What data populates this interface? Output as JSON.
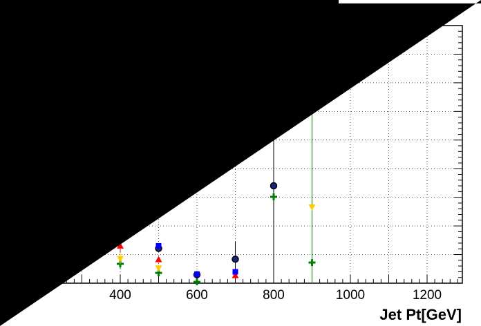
{
  "chart_data": {
    "type": "scatter",
    "title": "",
    "xlabel": "Jet Pt[GeV]",
    "ylabel": "",
    "xlim": [
      60,
      1300
    ],
    "ylim": [
      0,
      1
    ],
    "grid": true,
    "legend_position": "top",
    "x_ticks": [
      400,
      600,
      800,
      1000,
      1200
    ],
    "x_tick_labels": [
      "400",
      "600",
      "800",
      "1000",
      "1200"
    ],
    "series": [
      {
        "marker": "circle",
        "color": "#000000",
        "fill": "#1a237e",
        "points": [
          {
            "x": 500,
            "y": 0.135,
            "err": 0.01
          },
          {
            "x": 600,
            "y": 0.033,
            "err": 0.006
          },
          {
            "x": 700,
            "y": 0.093,
            "err": 0.068
          },
          {
            "x": 800,
            "y": 0.378,
            "err": 0.53
          }
        ]
      },
      {
        "marker": "cross",
        "color": "#008000",
        "points": [
          {
            "x": 400,
            "y": 0.075,
            "err": 0.02
          },
          {
            "x": 500,
            "y": 0.04,
            "err": 0.01
          },
          {
            "x": 600,
            "y": 0.005,
            "err": 0.004
          },
          {
            "x": 800,
            "y": 0.335,
            "err": 0.0
          },
          {
            "x": 900,
            "y": 0.08,
            "err": 0.635
          }
        ]
      },
      {
        "marker": "triangle-down",
        "color": "#ffcc00",
        "points": [
          {
            "x": 400,
            "y": 0.095,
            "err": 0.02
          },
          {
            "x": 500,
            "y": 0.058,
            "err": 0.012
          },
          {
            "x": 900,
            "y": 0.295,
            "err": 0.0
          }
        ]
      },
      {
        "marker": "triangle-up",
        "color": "#ff0000",
        "points": [
          {
            "x": 400,
            "y": 0.145,
            "err": 0.025
          },
          {
            "x": 500,
            "y": 0.092,
            "err": 0.012
          },
          {
            "x": 700,
            "y": 0.03,
            "err": 0.01
          }
        ]
      },
      {
        "marker": "square",
        "color": "#0000ff",
        "points": [
          {
            "x": 500,
            "y": 0.145,
            "err": 0.008
          },
          {
            "x": 600,
            "y": 0.035,
            "err": 0.005
          },
          {
            "x": 700,
            "y": 0.044,
            "err": 0.004
          }
        ]
      }
    ]
  }
}
